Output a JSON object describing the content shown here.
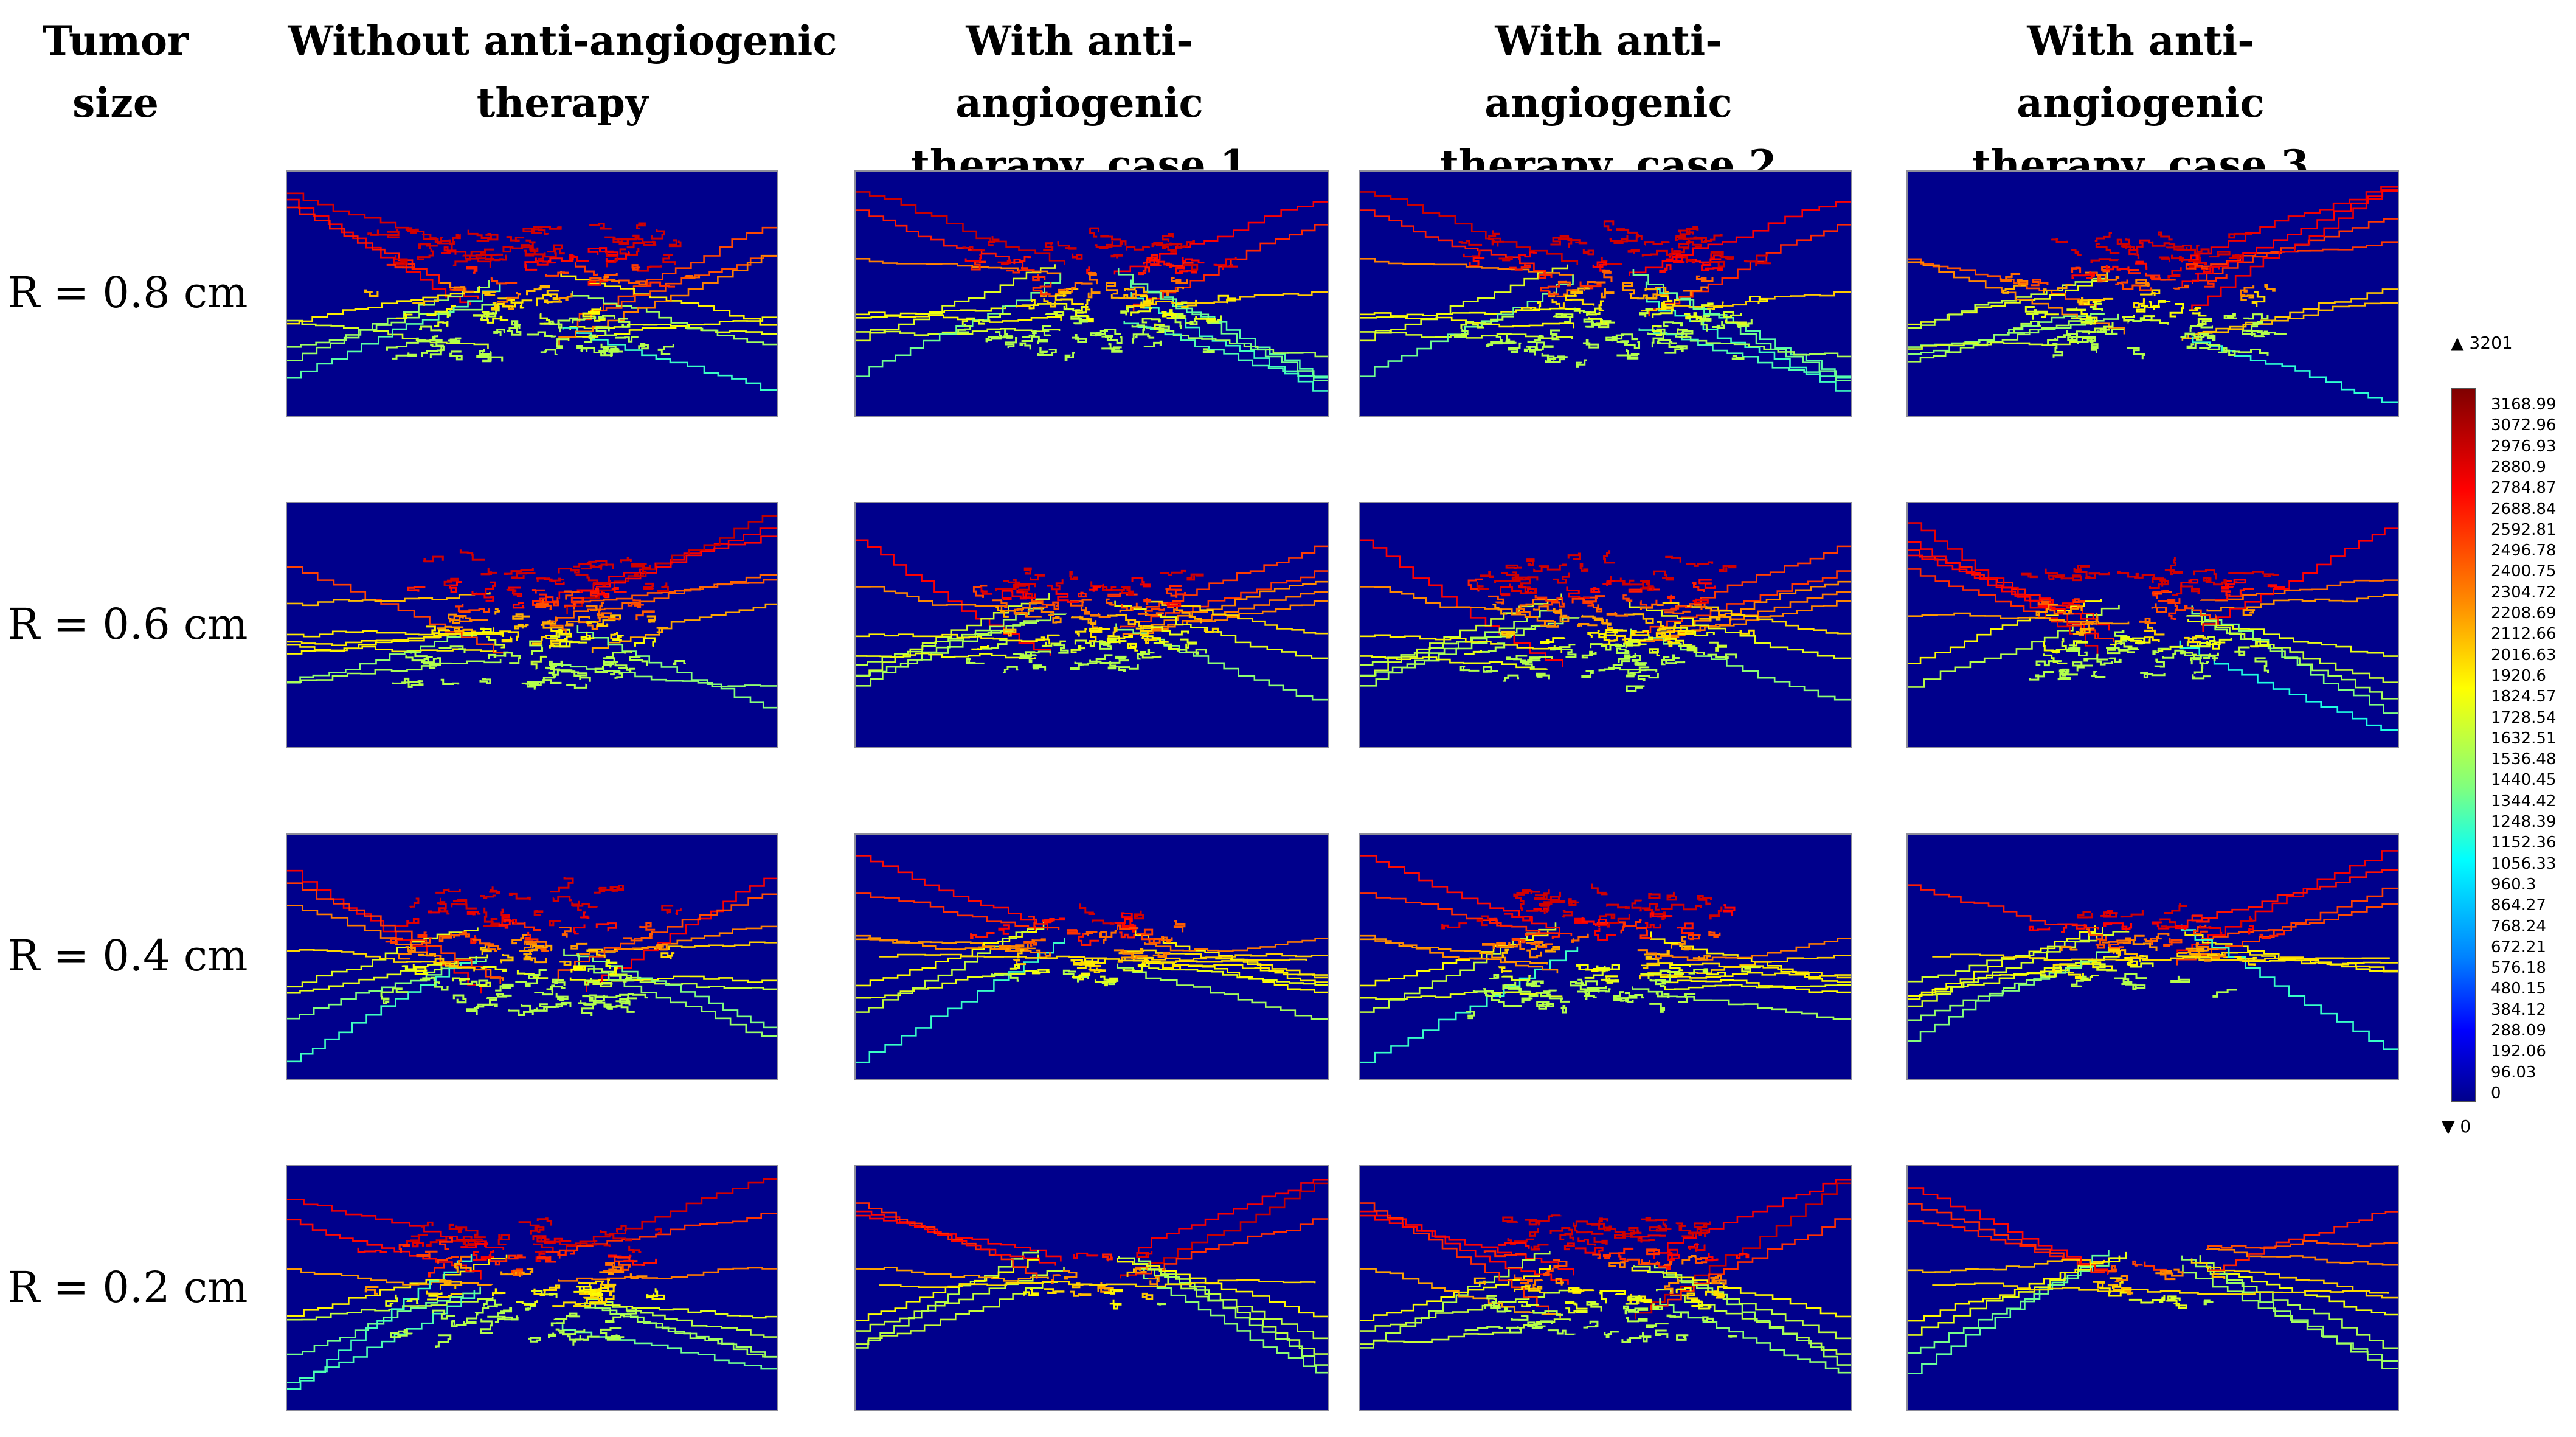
{
  "column_headers": [
    [
      "Tumor",
      "size"
    ],
    [
      "Without anti-angiogenic",
      "therapy"
    ],
    [
      "With anti-angiogenic",
      "therapy, case 1"
    ],
    [
      "With anti-angiogenic",
      "therapy, case 2"
    ],
    [
      "With anti-angiogenic",
      "therapy, case 3"
    ]
  ],
  "row_labels": [
    "R = 0.8 cm",
    "R = 0.6 cm",
    "R = 0.4 cm",
    "R = 0.2 cm"
  ],
  "colorbar": {
    "max_label": "▲ 3201",
    "min_label": "▼ 0",
    "ticks": [
      "3168.99",
      "3072.96",
      "2976.93",
      "2880.9",
      "2784.87",
      "2688.84",
      "2592.81",
      "2496.78",
      "2400.75",
      "2304.72",
      "2208.69",
      "2112.66",
      "2016.63",
      "1920.6",
      "1824.57",
      "1728.54",
      "1632.51",
      "1536.48",
      "1440.45",
      "1344.42",
      "1248.39",
      "1152.36",
      "1056.33",
      "960.3",
      "864.27",
      "768.24",
      "672.21",
      "576.18",
      "480.15",
      "384.12",
      "288.09",
      "192.06",
      "96.03",
      "0"
    ],
    "colormap": "jet",
    "background_color": "#00008c"
  }
}
